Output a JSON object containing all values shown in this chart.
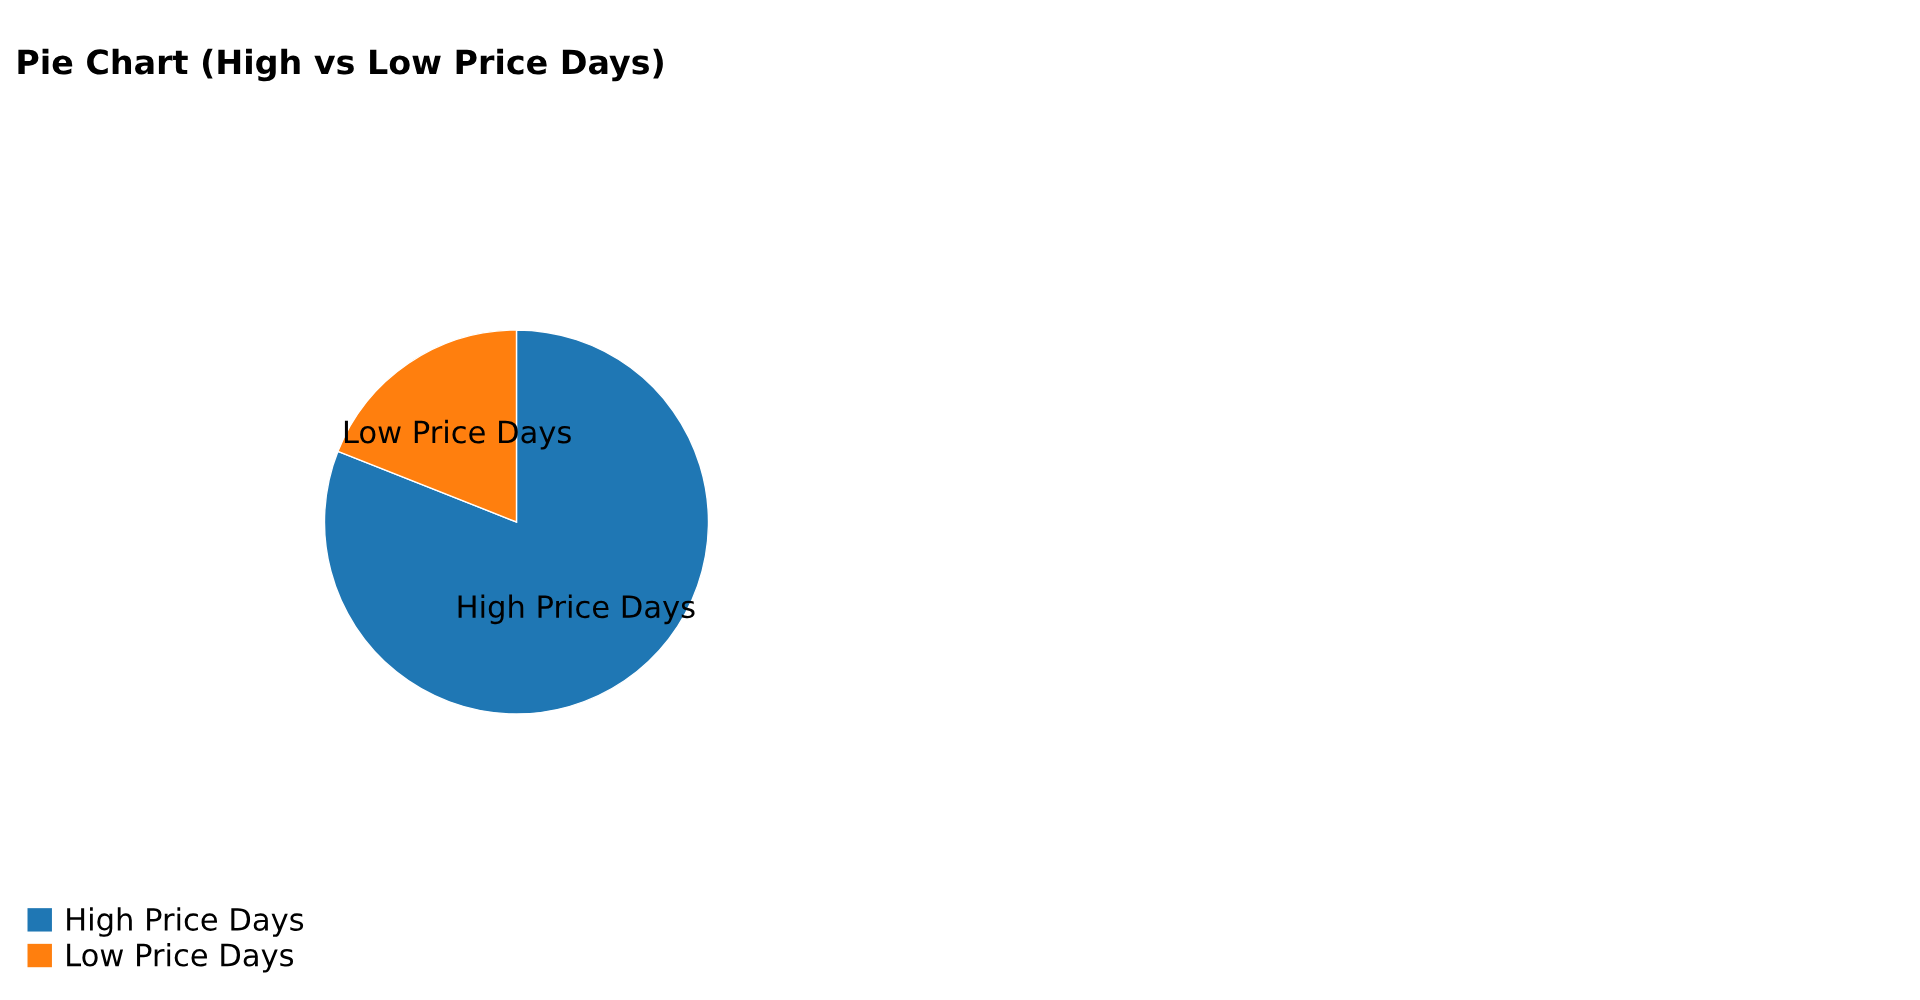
{
  "chart_data": {
    "type": "pie",
    "title": "Pie Chart (High vs Low Price Days)",
    "categories": [
      "High Price Days",
      "Low Price Days"
    ],
    "values": [
      81,
      19
    ],
    "colors": [
      "#1f77b4",
      "#ff7f0e"
    ],
    "legend": "bottom left"
  }
}
